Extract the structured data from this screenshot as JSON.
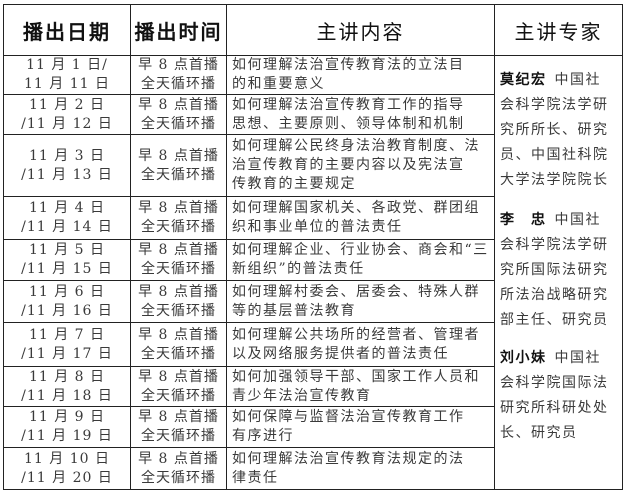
{
  "headers": [
    "播出日期",
    "播出时间",
    "主讲内容",
    "主讲专家"
  ],
  "rows": [
    {
      "date": [
        "11 月 1 日/",
        "11 月 11 日"
      ],
      "time": [
        "早 8 点首播",
        "全天循环播"
      ],
      "topic": [
        "如何理解法治宣传教育法的立法目",
        "的和重要意义"
      ]
    },
    {
      "date": [
        "11 月 2 日",
        "/11 月 12 日"
      ],
      "time": [
        "早 8 点首播",
        "全天循环播"
      ],
      "topic": [
        "如何理解法治宣传教育工作的指导",
        "思想、主要原则、领导体制和机制"
      ]
    },
    {
      "date": [
        "11 月 3 日",
        "/11 月 13 日"
      ],
      "time": [
        "早 8 点首播",
        "全天循环播"
      ],
      "topic": [
        "如何理解公民终身法治教育制度、法",
        "治宣传教育的主要内容以及宪法宣",
        "传教育的主要规定"
      ]
    },
    {
      "date": [
        "11 月 4 日",
        "/11 月 14 日"
      ],
      "time": [
        "早 8 点首播",
        "全天循环播"
      ],
      "topic": [
        "如何理解国家机关、各政党、群团组",
        "织和事业单位的普法责任"
      ]
    },
    {
      "date": [
        "11 月 5 日",
        "/11 月 15 日"
      ],
      "time": [
        "早 8 点首播",
        "全天循环播"
      ],
      "topic": [
        "如何理解企业、行业协会、商会和“三",
        "新组织”的普法责任"
      ]
    },
    {
      "date": [
        "11 月 6 日",
        "/11 月 16 日"
      ],
      "time": [
        "早 8 点首播",
        "全天循环播"
      ],
      "topic": [
        "如何理解村委会、居委会、特殊人群",
        "等的基层普法教育"
      ]
    },
    {
      "date": [
        "11 月 7 日",
        "/11 月 17 日"
      ],
      "time": [
        "早 8 点首播",
        "全天循环播"
      ],
      "topic": [
        "如何理解公共场所的经营者、管理者",
        "以及网络服务提供者的普法责任"
      ]
    },
    {
      "date": [
        "11 月 8 日",
        "/11 月 18 日"
      ],
      "time": [
        "早 8 点首播",
        "全天循环播"
      ],
      "topic": [
        "如何加强领导干部、国家工作人员和",
        "青少年法治宣传教育"
      ]
    },
    {
      "date": [
        "11 月 9 日",
        "/11 月 19 日"
      ],
      "time": [
        "早 8 点首播",
        "全天循环播"
      ],
      "topic": [
        "如何保障与监督法治宣传教育工作",
        "有序进行"
      ]
    },
    {
      "date": [
        "11 月 10 日",
        "/11 月 20 日"
      ],
      "time": [
        "早 8 点首播",
        "全天循环播"
      ],
      "topic": [
        "如何理解法治宣传教育法规定的法",
        "律责任"
      ]
    }
  ],
  "experts": [
    {
      "name": "莫纪宏",
      "lines": [
        "中国社",
        "会科学院法学研",
        "究所所长、研究",
        "员、中国社科院",
        "大学法学院院长"
      ]
    },
    {
      "name": "李　忠",
      "lines": [
        "中国社",
        "会科学院法学研",
        "究所国际法研究",
        "所法治战略研究",
        "部主任、研究员"
      ]
    },
    {
      "name": "刘小妹",
      "lines": [
        "中国社",
        "会科学院国际法",
        "研究所科研处处",
        "长、研究员"
      ]
    }
  ]
}
